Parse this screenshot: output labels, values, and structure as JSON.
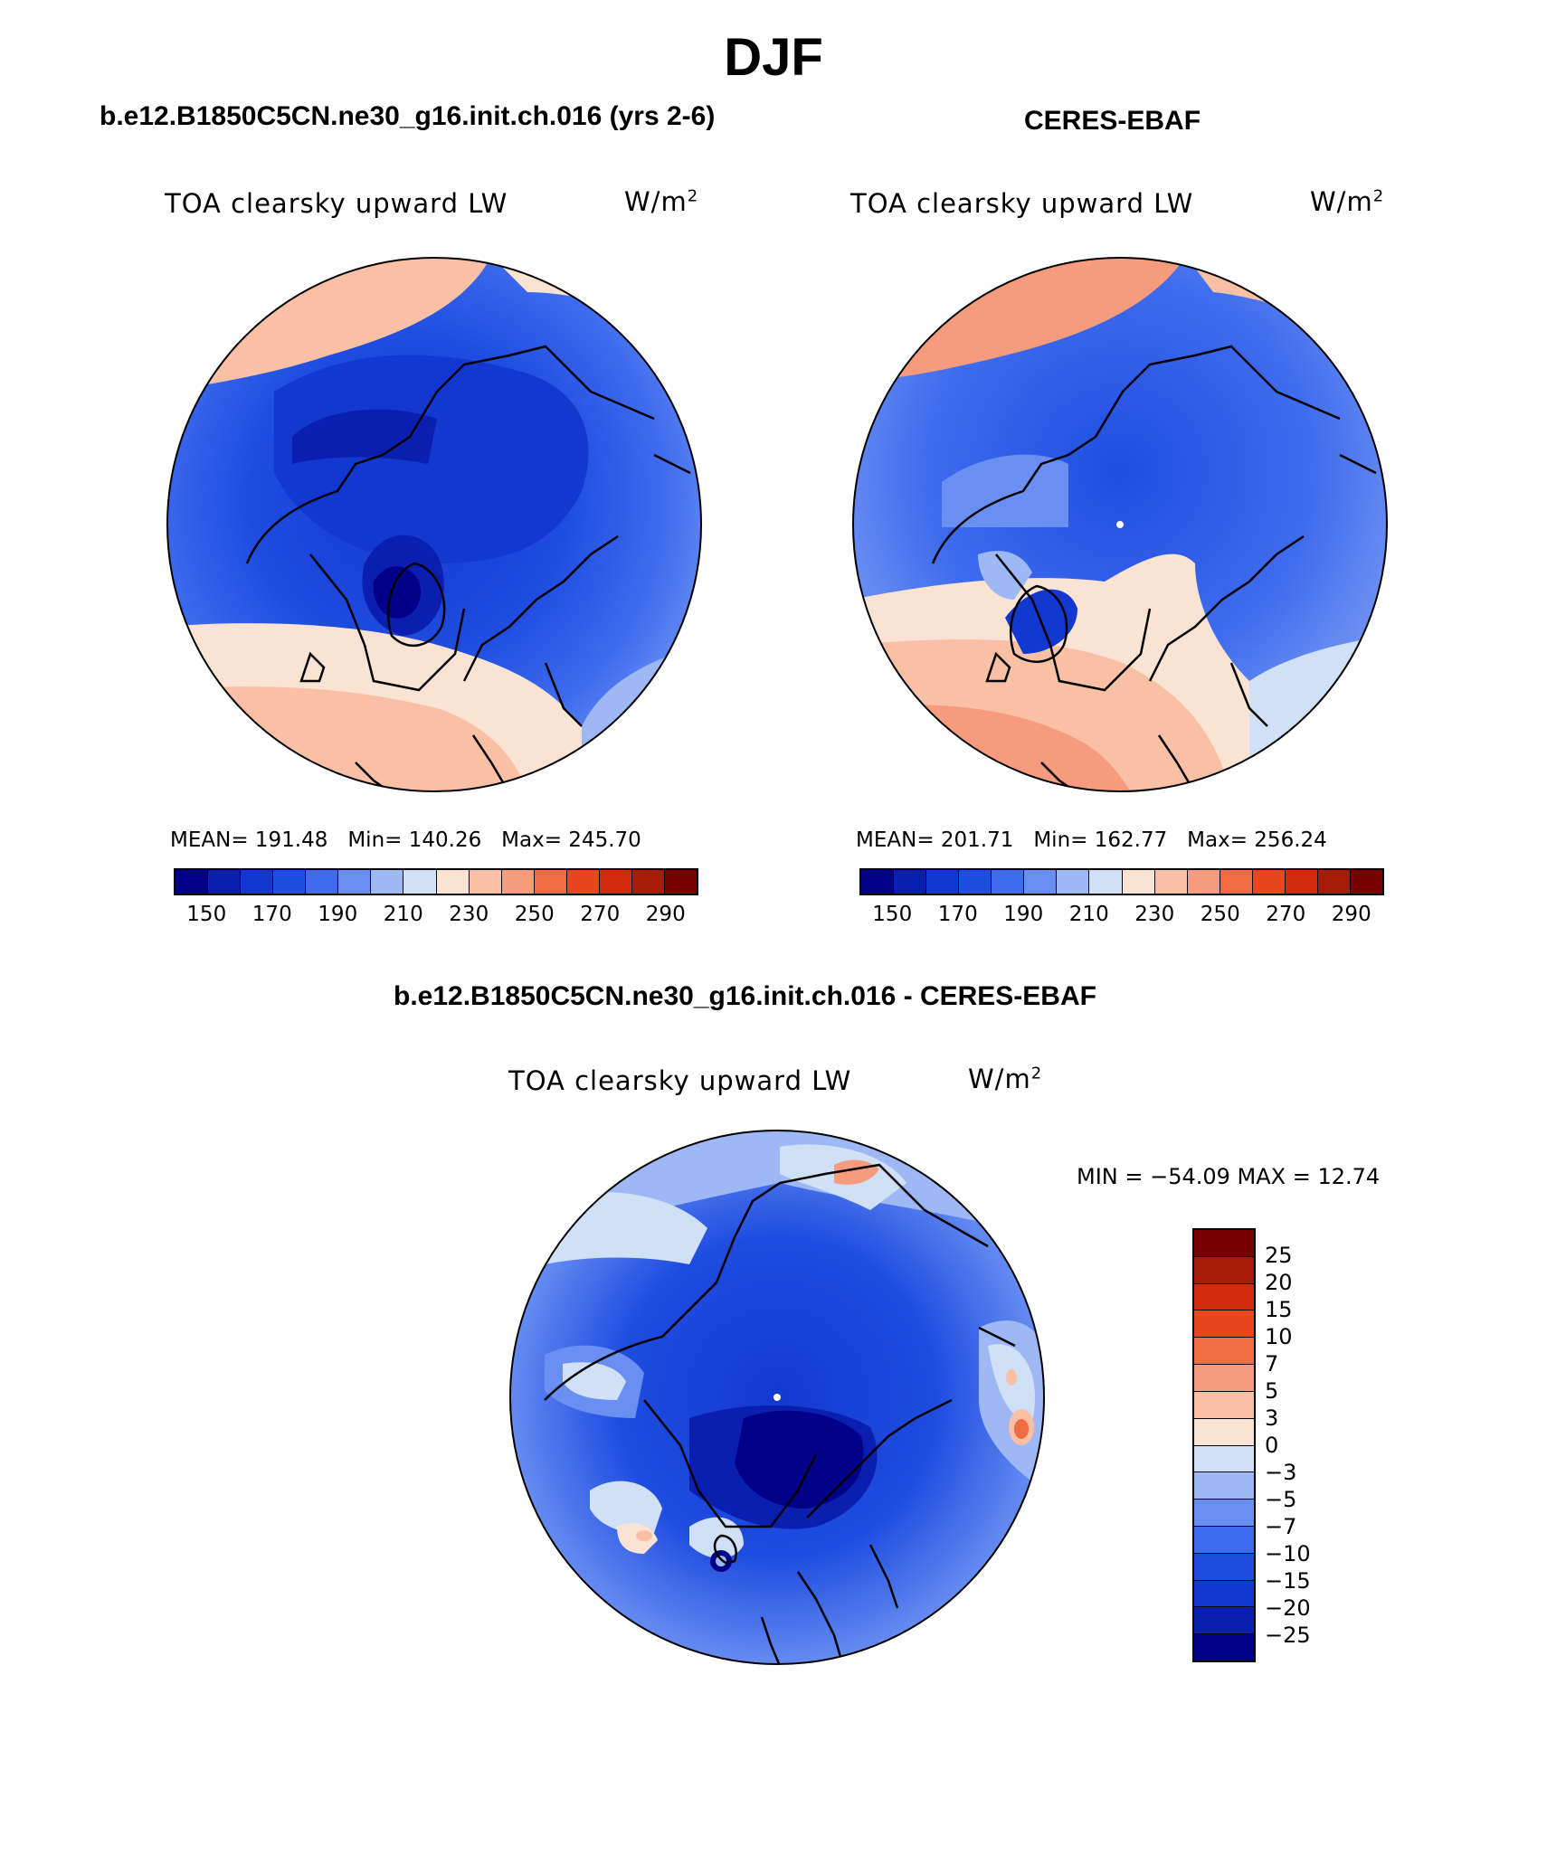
{
  "season": "DJF",
  "panels": {
    "model": {
      "case_title": "b.e12.B1850C5CN.ne30_g16.init.ch.016 (yrs 2-6)",
      "variable": "TOA clearsky upward LW",
      "units_base": "W/m",
      "units_exp": "2",
      "mean_label": "MEAN=",
      "mean": "191.48",
      "min_label": "Min=",
      "min": "140.26",
      "max_label": "Max=",
      "max": "245.70"
    },
    "obs": {
      "case_title": "CERES-EBAF",
      "variable": "TOA clearsky upward LW",
      "units_base": "W/m",
      "units_exp": "2",
      "mean_label": "MEAN=",
      "mean": "201.71",
      "min_label": "Min=",
      "min": "162.77",
      "max_label": "Max=",
      "max": "256.24"
    },
    "diff": {
      "case_title": "b.e12.B1850C5CN.ne30_g16.init.ch.016 - CERES-EBAF",
      "variable": "TOA clearsky upward LW",
      "units_base": "W/m",
      "units_exp": "2",
      "minmax_text": "MIN = −54.09 MAX =   12.74"
    }
  },
  "colorbars": {
    "abs": {
      "colors": [
        "#000088",
        "#0a1fb0",
        "#1238d0",
        "#1f4de0",
        "#3f6cee",
        "#6a8ff2",
        "#9db8f4",
        "#cfe0f7",
        "#fbe3d3",
        "#f9c0a6",
        "#f69b7d",
        "#f06a42",
        "#e8461e",
        "#d02c0c",
        "#a81b06",
        "#7a0000"
      ],
      "tick_labels": [
        "150",
        "170",
        "190",
        "210",
        "230",
        "250",
        "270",
        "290"
      ]
    },
    "diff": {
      "colors": [
        "#7a0000",
        "#a81b06",
        "#d02c0c",
        "#e8461e",
        "#f06a42",
        "#f69b7d",
        "#f9c0a6",
        "#fbe3d3",
        "#cfe0f7",
        "#9db8f4",
        "#6a8ff2",
        "#3f6cee",
        "#1f4de0",
        "#1238d0",
        "#0a1fb0",
        "#000088"
      ],
      "tick_labels": [
        "25",
        "20",
        "15",
        "10",
        "7",
        "5",
        "3",
        "0",
        "−3",
        "−5",
        "−7",
        "−10",
        "−15",
        "−20",
        "−25"
      ]
    }
  }
}
